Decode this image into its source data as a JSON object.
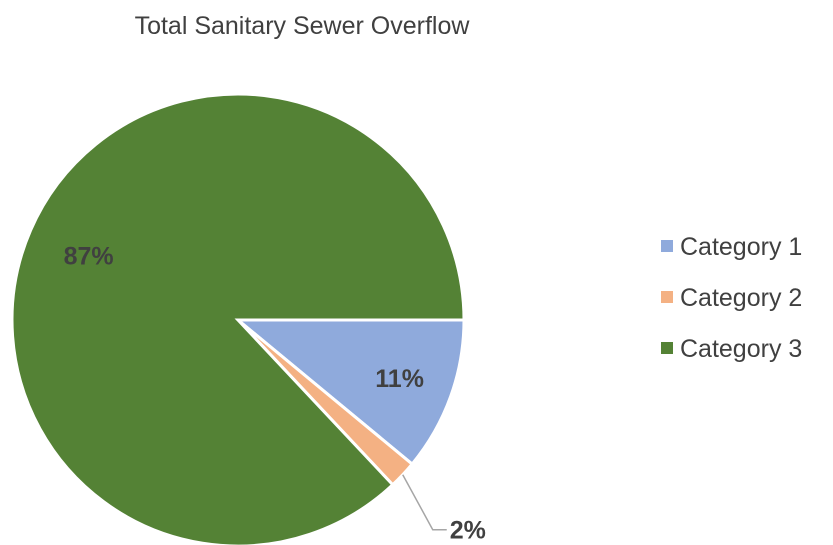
{
  "chart_data": {
    "type": "pie",
    "title": "Total Sanitary Sewer Overflow",
    "categories": [
      "Category 1",
      "Category 2",
      "Category 3"
    ],
    "values": [
      11,
      2,
      87
    ],
    "labels": [
      "11%",
      "2%",
      "87%"
    ],
    "colors": [
      "#8faadc",
      "#f4b183",
      "#548235"
    ],
    "legend_position": "right"
  }
}
